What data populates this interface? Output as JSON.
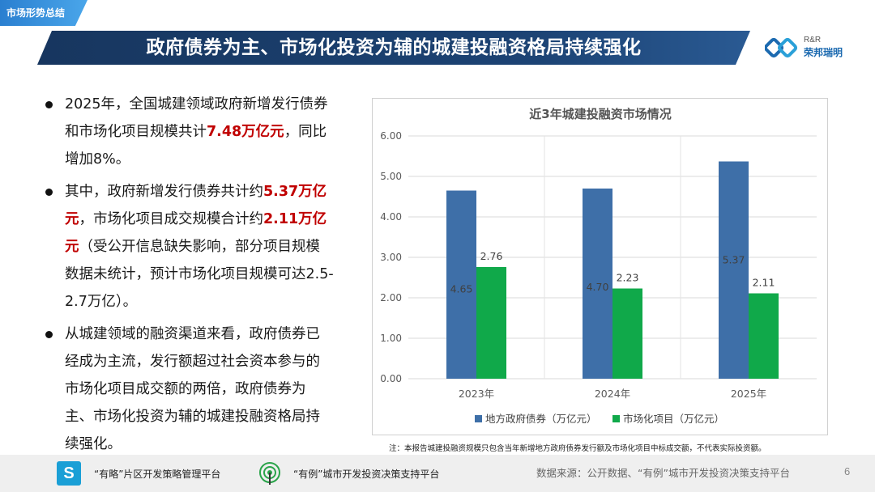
{
  "section_tag": "市场形势总结",
  "title": "政府债券为主、市场化投资为辅的城建投融资格局持续强化",
  "logo": {
    "en": "R&R",
    "cn": "荣邦瑞明"
  },
  "bullets": [
    {
      "parts": [
        {
          "text": "2025年，全国城建领域政府新增发行债券和市场化项目规模共计",
          "hl": false
        },
        {
          "text": "7.48万亿元",
          "hl": true
        },
        {
          "text": "，同比增加8%。",
          "hl": false
        }
      ]
    },
    {
      "parts": [
        {
          "text": "其中，政府新增发行债券共计约",
          "hl": false
        },
        {
          "text": "5.37万亿元",
          "hl": true
        },
        {
          "text": "，市场化项目成交规模合计约",
          "hl": false
        },
        {
          "text": "2.11万亿元",
          "hl": true
        },
        {
          "text": "（受公开信息缺失影响，部分项目规模数据未统计，预计市场化项目规模可达2.5-2.7万亿）。",
          "hl": false
        }
      ]
    },
    {
      "parts": [
        {
          "text": "从城建领域的融资渠道来看，政府债券已经成为主流，发行额超过社会资本参与的市场化项目成交额的两倍，政府债券为主、市场化投资为辅的城建投融资格局持续强化。",
          "hl": false
        }
      ]
    }
  ],
  "chart_data": {
    "type": "bar",
    "title": "近3年城建投融资市场情况",
    "categories": [
      "2023年",
      "2024年",
      "2025年"
    ],
    "series": [
      {
        "name": "地方政府债券（万亿元）",
        "values": [
          4.65,
          4.7,
          5.37
        ],
        "labels": [
          "4.65",
          "4.70",
          "5.37"
        ],
        "color": "#3e6fa8"
      },
      {
        "name": "市场化项目（万亿元）",
        "values": [
          2.76,
          2.23,
          2.11
        ],
        "labels": [
          "2.76",
          "2.23",
          "2.11"
        ],
        "color": "#10a94a"
      }
    ],
    "ylim": [
      0,
      6
    ],
    "yticks": [
      "0.00",
      "1.00",
      "2.00",
      "3.00",
      "4.00",
      "5.00",
      "6.00"
    ],
    "grid": true,
    "legend": "bottom"
  },
  "note": "注：本报告城建投融资规模只包含当年新增地方政府债券发行额及市场化项目中标成交额，不代表实际投资额。",
  "footer": {
    "item1": "“有略”片区开发策略管理平台",
    "item2": "“有例”城市开发投资决策支持平台",
    "source": "数据来源：公开数据、“有例”城市开发投资决策支持平台",
    "page": "6"
  }
}
